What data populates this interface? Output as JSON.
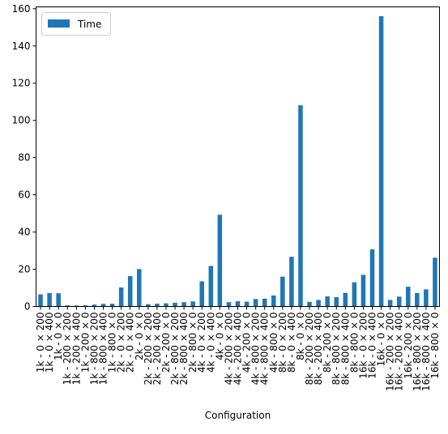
{
  "chart_data": {
    "type": "bar",
    "xlabel": "Configuration",
    "ylabel": "",
    "ylim": [
      0,
      161
    ],
    "yticks": [
      0,
      20,
      40,
      60,
      80,
      100,
      120,
      140,
      160
    ],
    "grid": false,
    "legend": {
      "position": "top-left",
      "entries": [
        "Time"
      ]
    },
    "bar_color": "#1f77b4",
    "categories": [
      "1k - 0 × 200",
      "1k - 0 × 400",
      "1k - 0 × 0",
      "1k - 200 × 200",
      "1k - 200 × 400",
      "1k - 200 × 0",
      "1k - 800 × 200",
      "1k - 800 × 400",
      "1k - 800 × 0",
      "2k - 0 × 200",
      "2k - 0 × 400",
      "2k - 0 × 0",
      "2k - 200 × 200",
      "2k - 200 × 400",
      "2k - 200 × 0",
      "2k - 800 × 200",
      "2k - 800 × 400",
      "2k - 800 × 0",
      "4k - 0 × 200",
      "4k - 0 × 400",
      "4k - 0 × 0",
      "4k - 200 × 200",
      "4k - 200 × 400",
      "4k - 200 × 0",
      "4k - 800 × 200",
      "4k - 800 × 400",
      "4k - 800 × 0",
      "8k - 0 × 200",
      "8k - 0 × 400",
      "8k - 0 × 0",
      "8k - 200 × 200",
      "8k - 200 × 400",
      "8k - 200 × 0",
      "8k - 800 × 200",
      "8k - 800 × 400",
      "8k - 800 × 0",
      "16k - 0 × 200",
      "16k - 0 × 400",
      "16k - 0 × 0",
      "16k - 200 × 200",
      "16k - 200 × 400",
      "16k - 200 × 0",
      "16k - 800 × 200",
      "16k - 800 × 400",
      "16k - 800 × 0"
    ],
    "series": [
      {
        "name": "Time",
        "values": [
          6.5,
          7.2,
          7.1,
          0.6,
          0.5,
          0.6,
          1.0,
          1.4,
          1.5,
          10.2,
          16.3,
          20.1,
          1.2,
          1.5,
          1.7,
          2.0,
          2.3,
          2.7,
          13.5,
          21.8,
          49.3,
          2.3,
          2.8,
          2.6,
          4.0,
          4.2,
          5.9,
          16.0,
          26.7,
          108.1,
          2.5,
          3.5,
          5.4,
          5.0,
          7.3,
          13.0,
          17.0,
          30.7,
          156.0,
          3.5,
          5.3,
          10.6,
          7.2,
          9.2,
          26.2
        ]
      }
    ]
  }
}
